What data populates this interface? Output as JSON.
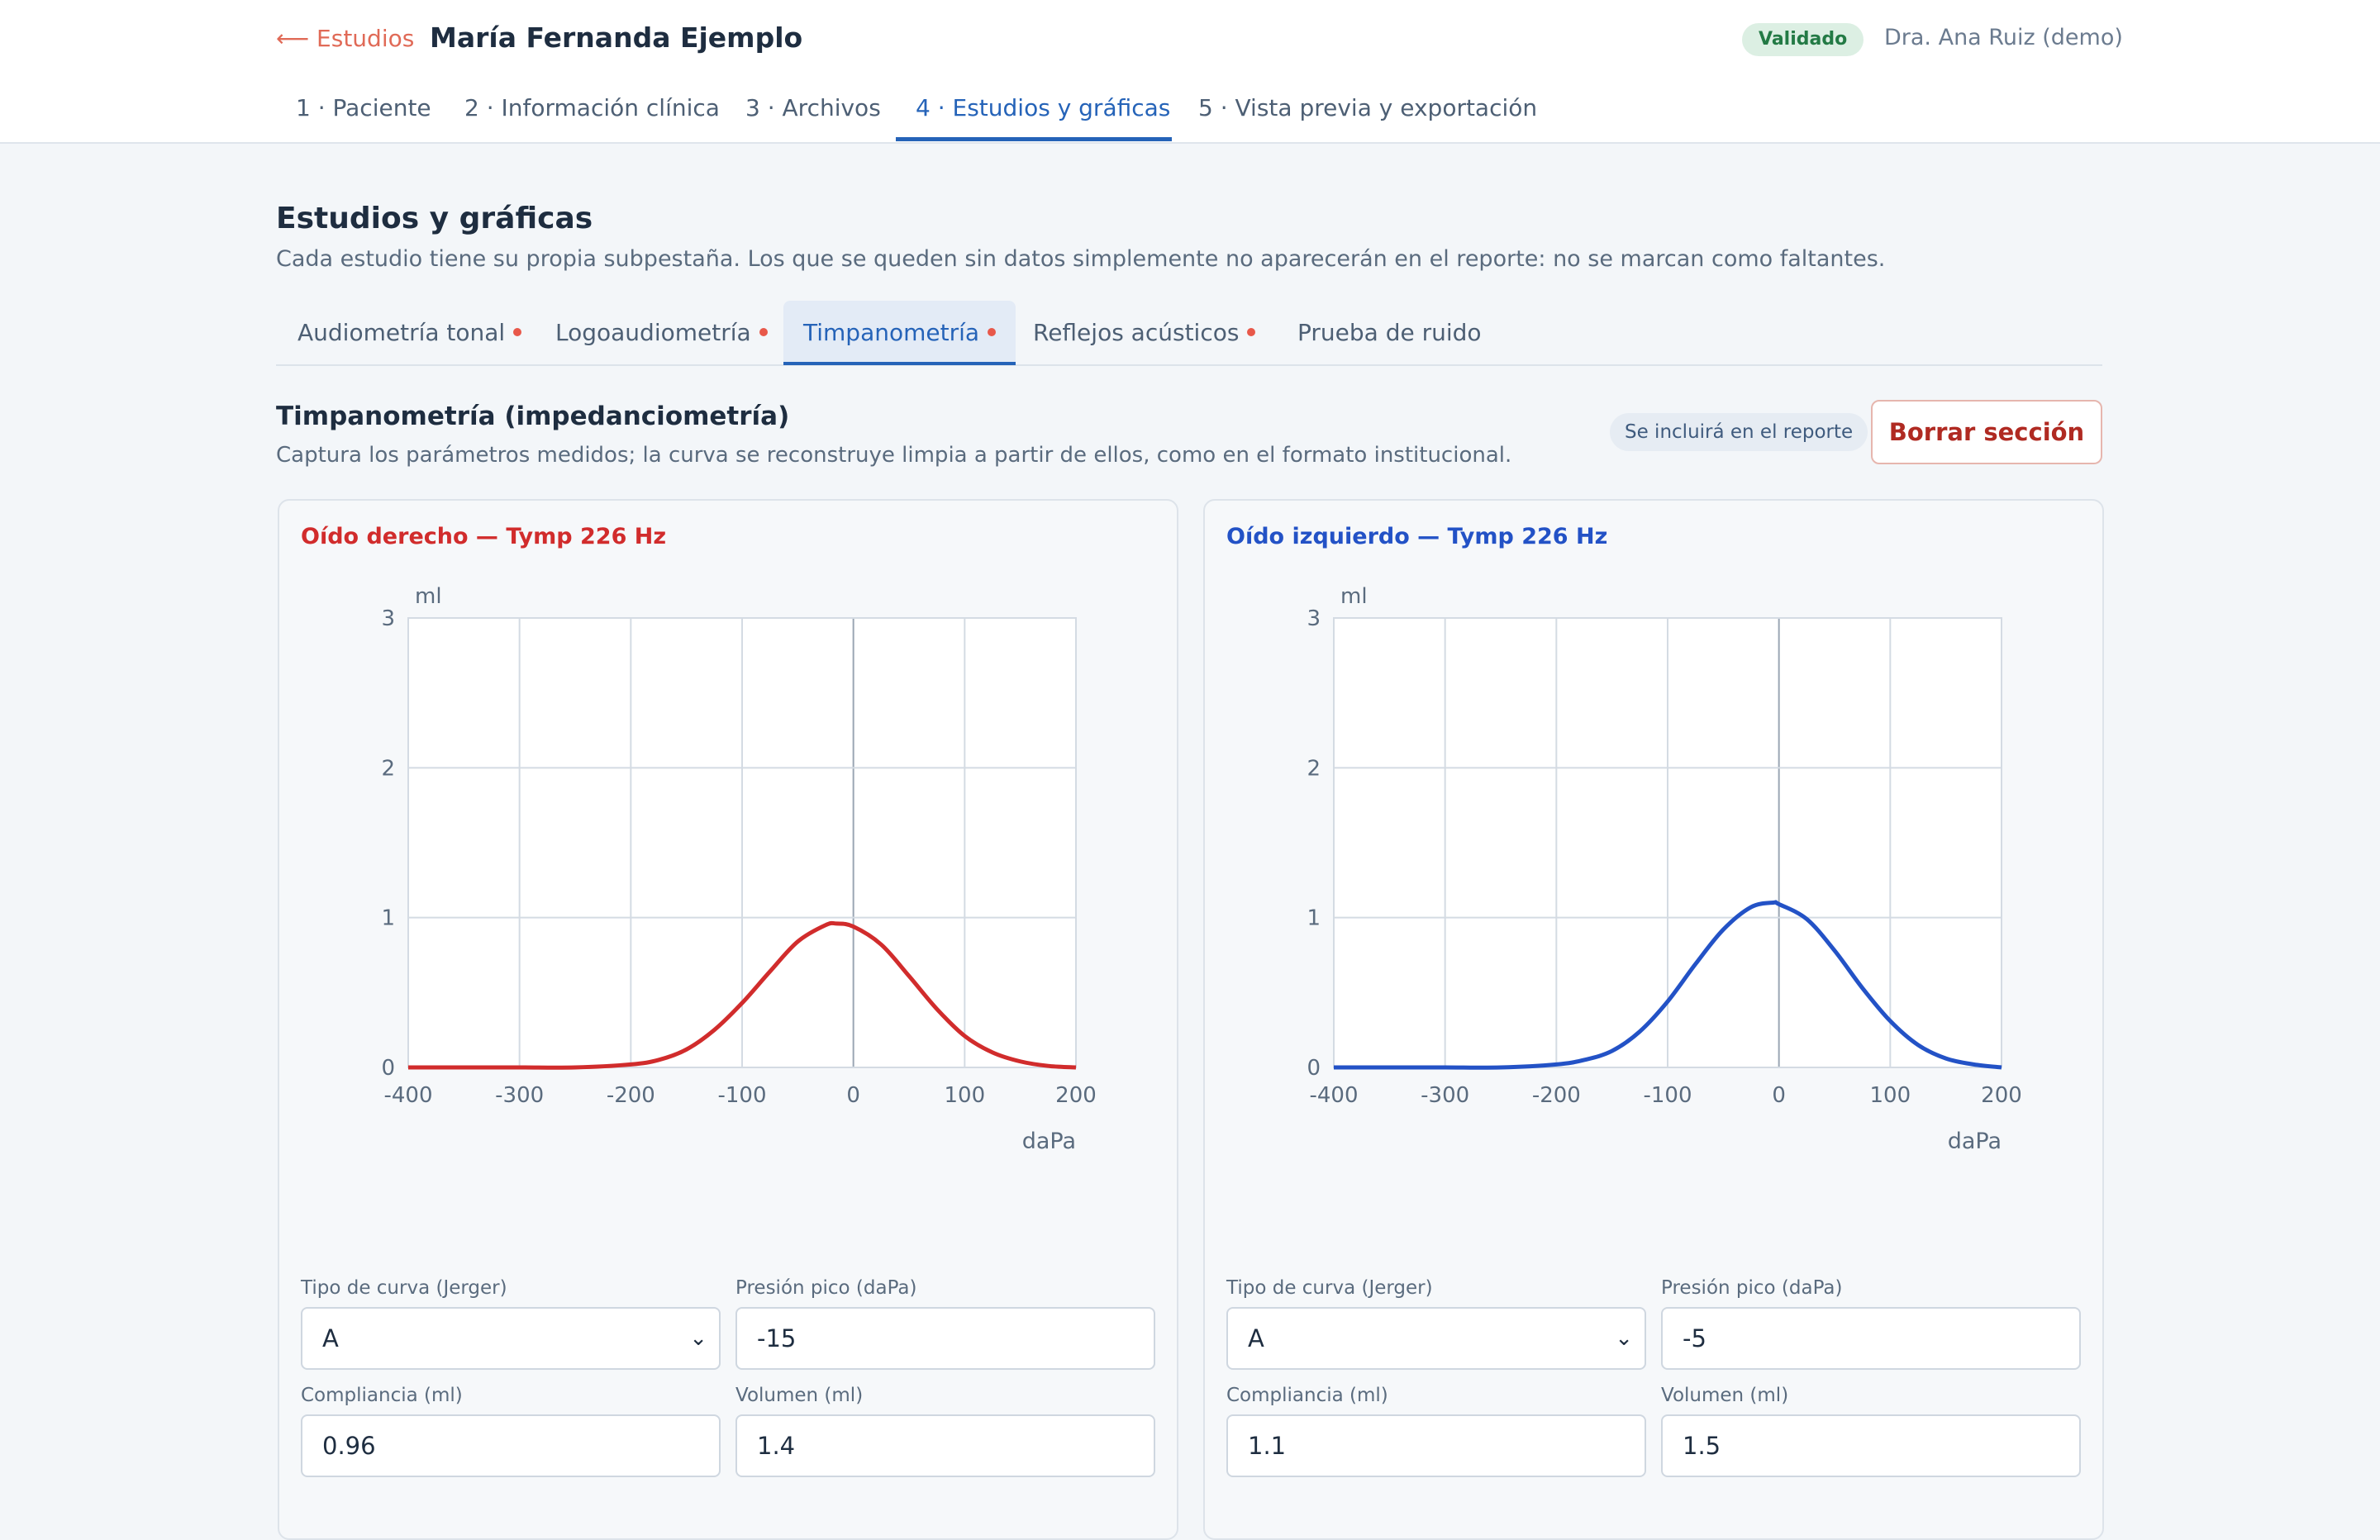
{
  "header": {
    "back_label": "⟵ Estudios",
    "patient_name": "María Fernanda Ejemplo",
    "status": "Validado",
    "doctor": "Dra. Ana Ruiz (demo)"
  },
  "main_tabs": [
    {
      "label": "1 · Paciente"
    },
    {
      "label": "2 · Información clínica"
    },
    {
      "label": "3 · Archivos"
    },
    {
      "label": "4 · Estudios y gráficas"
    },
    {
      "label": "5 · Vista previa y exportación"
    }
  ],
  "section": {
    "title": "Estudios y gráficas",
    "description": "Cada estudio tiene su propia subpestaña. Los que se queden sin datos simplemente no aparecerán en el reporte: no se marcan como faltantes."
  },
  "sub_tabs": [
    {
      "label": "Audiometría tonal"
    },
    {
      "label": "Logoaudiometría"
    },
    {
      "label": "Timpanometría"
    },
    {
      "label": "Reflejos acústicos"
    },
    {
      "label": "Prueba de ruido"
    }
  ],
  "block": {
    "title": "Timpanometría (impedanciometría)",
    "description": "Captura los parámetros medidos; la curva se reconstruye limpia a partir de ellos, como en el formato institucional.",
    "include_badge": "Se incluirá en el reporte",
    "clear_button": "Borrar sección"
  },
  "colors": {
    "right_ear": "#d12c2c",
    "left_ear": "#2352c6",
    "accent": "#2563b8",
    "dot": "#e8584a"
  },
  "field_labels": {
    "curve_type": "Tipo de curva (Jerger)",
    "peak_pressure": "Presión pico (daPa)",
    "compliance": "Compliancia (ml)",
    "volume": "Volumen (ml)"
  },
  "right_ear": {
    "title": "Oído derecho — Tymp 226 Hz",
    "curve_type": "A",
    "peak_pressure": "-15",
    "compliance": "0.96",
    "volume": "1.4"
  },
  "left_ear": {
    "title": "Oído izquierdo — Tymp 226 Hz",
    "curve_type": "A",
    "peak_pressure": "-5",
    "compliance": "1.1",
    "volume": "1.5"
  },
  "chart_data": [
    {
      "type": "line",
      "title": "Oído derecho — Tymp 226 Hz",
      "xlabel": "daPa",
      "ylabel": "ml",
      "xlim": [
        -400,
        200
      ],
      "ylim": [
        0,
        3
      ],
      "xticks": [
        -400,
        -300,
        -200,
        -100,
        0,
        100,
        200
      ],
      "yticks": [
        0,
        1,
        2,
        3
      ],
      "grid": true,
      "series": [
        {
          "color": "#d12c2c",
          "x": [
            -400,
            -350,
            -300,
            -250,
            -200,
            -175,
            -150,
            -125,
            -100,
            -75,
            -50,
            -25,
            -15,
            0,
            25,
            50,
            75,
            100,
            125,
            150,
            175,
            200
          ],
          "y": [
            0.0,
            0.0,
            0.0,
            0.0,
            0.02,
            0.05,
            0.12,
            0.25,
            0.43,
            0.64,
            0.84,
            0.95,
            0.96,
            0.94,
            0.82,
            0.61,
            0.39,
            0.21,
            0.1,
            0.04,
            0.01,
            0.0
          ]
        }
      ]
    },
    {
      "type": "line",
      "title": "Oído izquierdo — Tymp 226 Hz",
      "xlabel": "daPa",
      "ylabel": "ml",
      "xlim": [
        -400,
        200
      ],
      "ylim": [
        0,
        3
      ],
      "xticks": [
        -400,
        -300,
        -200,
        -100,
        0,
        100,
        200
      ],
      "yticks": [
        0,
        1,
        2,
        3
      ],
      "grid": true,
      "series": [
        {
          "color": "#2352c6",
          "x": [
            -400,
            -350,
            -300,
            -250,
            -200,
            -175,
            -150,
            -125,
            -100,
            -75,
            -50,
            -25,
            -5,
            0,
            25,
            50,
            75,
            100,
            125,
            150,
            175,
            200
          ],
          "y": [
            0.0,
            0.0,
            0.0,
            0.0,
            0.02,
            0.05,
            0.11,
            0.24,
            0.44,
            0.69,
            0.92,
            1.07,
            1.1,
            1.09,
            0.99,
            0.78,
            0.53,
            0.31,
            0.15,
            0.06,
            0.02,
            0.0
          ]
        }
      ]
    }
  ]
}
